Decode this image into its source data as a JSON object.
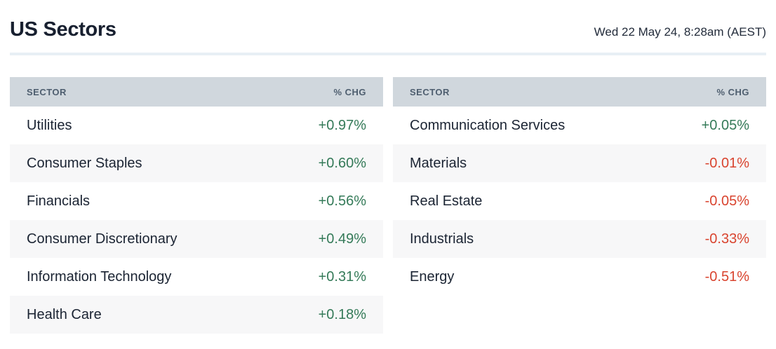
{
  "header": {
    "title": "US Sectors",
    "timestamp": "Wed 22 May 24, 8:28am (AEST)"
  },
  "columns": {
    "sector": "SECTOR",
    "change": "% CHG"
  },
  "colors": {
    "positive": "#347a58",
    "negative": "#d9442f",
    "header_bg": "#d0d7dd",
    "header_text": "#4e5e6f",
    "text": "#1b2433",
    "zebra_row_bg": "#f7f7f8",
    "divider": "#e8eff5"
  },
  "chart_data": [
    {
      "type": "table",
      "title": "US Sectors (left panel)",
      "columns": [
        "SECTOR",
        "% CHG"
      ],
      "rows": [
        [
          "Utilities",
          "+0.97%"
        ],
        [
          "Consumer Staples",
          "+0.60%"
        ],
        [
          "Financials",
          "+0.56%"
        ],
        [
          "Consumer Discretionary",
          "+0.49%"
        ],
        [
          "Information Technology",
          "+0.31%"
        ],
        [
          "Health Care",
          "+0.18%"
        ]
      ]
    },
    {
      "type": "table",
      "title": "US Sectors (right panel)",
      "columns": [
        "SECTOR",
        "% CHG"
      ],
      "rows": [
        [
          "Communication Services",
          "+0.05%"
        ],
        [
          "Materials",
          "-0.01%"
        ],
        [
          "Real Estate",
          "-0.05%"
        ],
        [
          "Industrials",
          "-0.33%"
        ],
        [
          "Energy",
          "-0.51%"
        ]
      ]
    }
  ]
}
